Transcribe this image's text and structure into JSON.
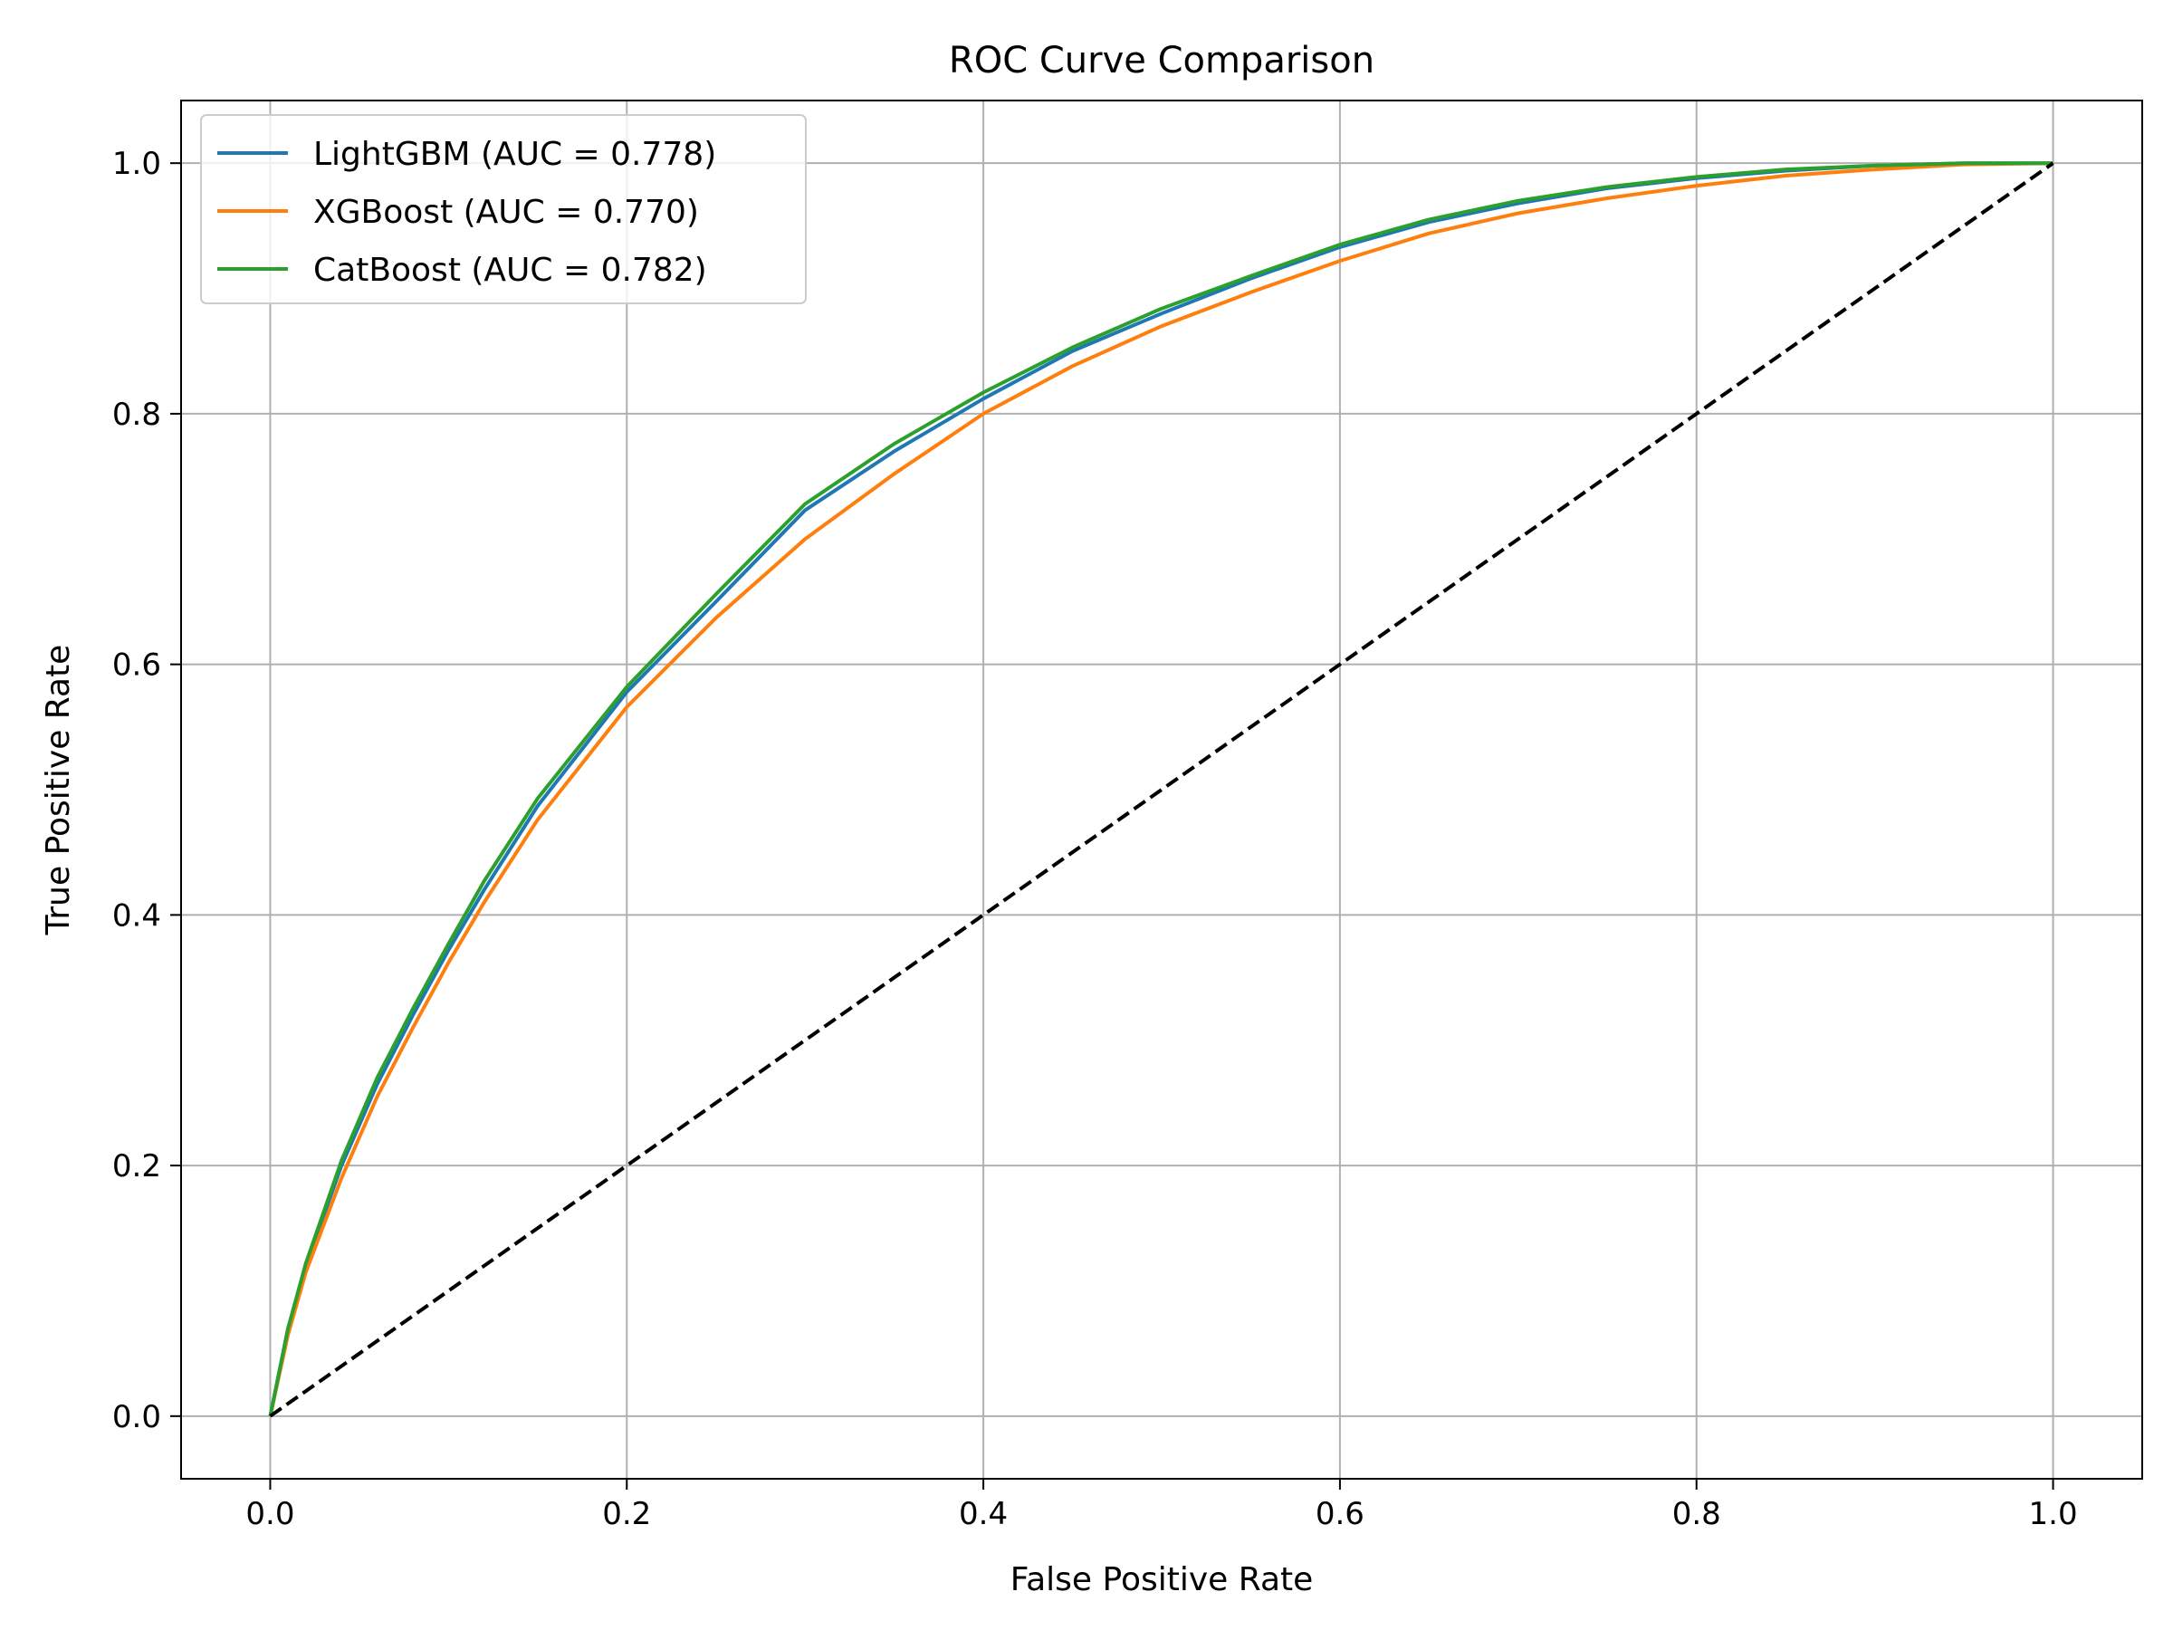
{
  "chart_data": {
    "type": "line",
    "title": "ROC Curve Comparison",
    "xlabel": "False Positive Rate",
    "ylabel": "True Positive Rate",
    "xlim": [
      -0.05,
      1.05
    ],
    "ylim": [
      -0.05,
      1.05
    ],
    "xticks": [
      0.0,
      0.2,
      0.4,
      0.6,
      0.8,
      1.0
    ],
    "yticks": [
      0.0,
      0.2,
      0.4,
      0.6,
      0.8,
      1.0
    ],
    "xtick_labels": [
      "0.0",
      "0.2",
      "0.4",
      "0.6",
      "0.8",
      "1.0"
    ],
    "ytick_labels": [
      "0.0",
      "0.2",
      "0.4",
      "0.6",
      "0.8",
      "1.0"
    ],
    "grid": true,
    "legend_position": "top-left",
    "series": [
      {
        "name": "LightGBM (AUC = 0.778)",
        "color": "#1f77b4",
        "x": [
          0,
          0.01,
          0.02,
          0.04,
          0.06,
          0.08,
          0.1,
          0.12,
          0.15,
          0.2,
          0.25,
          0.3,
          0.35,
          0.4,
          0.45,
          0.5,
          0.55,
          0.6,
          0.65,
          0.7,
          0.75,
          0.8,
          0.85,
          0.9,
          0.95,
          1.0
        ],
        "y": [
          0,
          0.07,
          0.12,
          0.2,
          0.265,
          0.32,
          0.372,
          0.42,
          0.487,
          0.578,
          0.65,
          0.723,
          0.77,
          0.812,
          0.85,
          0.88,
          0.908,
          0.933,
          0.953,
          0.968,
          0.98,
          0.988,
          0.994,
          0.998,
          1.0,
          1.0
        ]
      },
      {
        "name": "XGBoost (AUC = 0.770)",
        "color": "#ff7f0e",
        "x": [
          0,
          0.01,
          0.02,
          0.04,
          0.06,
          0.08,
          0.1,
          0.12,
          0.15,
          0.2,
          0.25,
          0.3,
          0.35,
          0.4,
          0.45,
          0.5,
          0.55,
          0.6,
          0.65,
          0.7,
          0.75,
          0.8,
          0.85,
          0.9,
          0.95,
          1.0
        ],
        "y": [
          0,
          0.065,
          0.115,
          0.19,
          0.255,
          0.31,
          0.362,
          0.41,
          0.476,
          0.566,
          0.637,
          0.7,
          0.752,
          0.8,
          0.838,
          0.87,
          0.897,
          0.922,
          0.944,
          0.96,
          0.972,
          0.982,
          0.99,
          0.995,
          0.999,
          1.0
        ]
      },
      {
        "name": "CatBoost (AUC = 0.782)",
        "color": "#2ca02c",
        "x": [
          0,
          0.01,
          0.02,
          0.04,
          0.06,
          0.08,
          0.1,
          0.12,
          0.15,
          0.2,
          0.25,
          0.3,
          0.35,
          0.4,
          0.45,
          0.5,
          0.55,
          0.6,
          0.65,
          0.7,
          0.75,
          0.8,
          0.85,
          0.9,
          0.95,
          1.0
        ],
        "y": [
          0,
          0.07,
          0.122,
          0.204,
          0.27,
          0.325,
          0.377,
          0.427,
          0.493,
          0.582,
          0.656,
          0.728,
          0.776,
          0.817,
          0.853,
          0.884,
          0.91,
          0.935,
          0.955,
          0.97,
          0.981,
          0.989,
          0.995,
          0.998,
          1.0,
          1.0
        ]
      },
      {
        "name": "",
        "color": "#000000",
        "style": "dashed",
        "x": [
          0,
          1
        ],
        "y": [
          0,
          1
        ]
      }
    ]
  }
}
